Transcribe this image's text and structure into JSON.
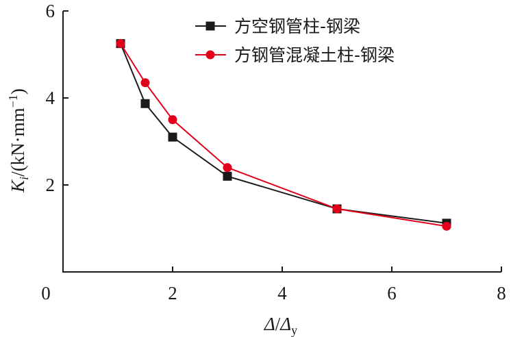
{
  "chart_data": {
    "type": "line",
    "x_label": {
      "symbol": "Δ",
      "slash": "/",
      "symbol2": "Δ",
      "subscript": "y"
    },
    "y_label": {
      "symbol": "K",
      "subscript": "i",
      "unit": "/(kN·mm",
      "exponent": "−1",
      "close": ")"
    },
    "x": [
      1.05,
      1.5,
      2,
      3,
      5,
      7
    ],
    "series": [
      {
        "name": "方空钢管柱-钢梁",
        "color": "#1a1a1a",
        "marker": "square",
        "values": [
          5.25,
          3.87,
          3.1,
          2.2,
          1.45,
          1.12
        ]
      },
      {
        "name": "方钢管混凝土柱-钢梁",
        "color": "#e3001b",
        "marker": "circle",
        "values": [
          5.25,
          4.35,
          3.5,
          2.4,
          1.45,
          1.05
        ]
      }
    ],
    "xlim": [
      0,
      8
    ],
    "ylim": [
      0,
      6
    ],
    "xticks": [
      0,
      2,
      4,
      6,
      8
    ],
    "yticks": [
      2,
      4,
      6
    ],
    "legend": "upper right"
  }
}
